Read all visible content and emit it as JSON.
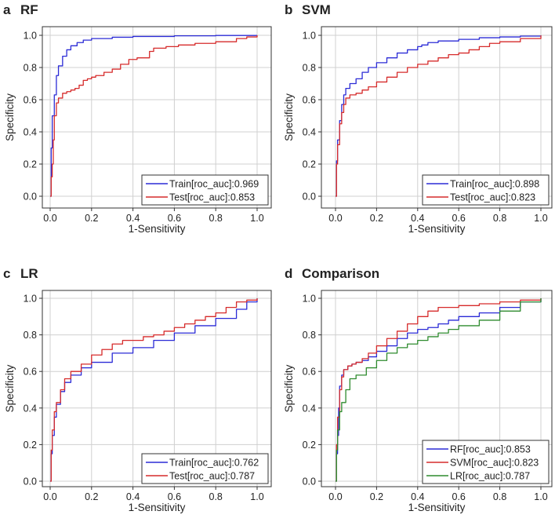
{
  "figure": {
    "panels": [
      {
        "letter": "a",
        "title": "RF"
      },
      {
        "letter": "b",
        "title": "SVM"
      },
      {
        "letter": "c",
        "title": "LR"
      },
      {
        "letter": "d",
        "title": "Comparison"
      }
    ]
  },
  "chart_data": [
    {
      "type": "line",
      "title": "RF",
      "xlabel": "1-Sensitivity",
      "ylabel": "Specificity",
      "xlim": [
        0,
        1
      ],
      "ylim": [
        0,
        1
      ],
      "xticks": [
        "0.0",
        "0.2",
        "0.4",
        "0.6",
        "0.8",
        "1.0"
      ],
      "yticks": [
        "0.0",
        "0.2",
        "0.4",
        "0.6",
        "0.8",
        "1.0"
      ],
      "grid": true,
      "legend_position": "bottom-right",
      "series": [
        {
          "name": "Train[roc_auc]:0.969",
          "color": "#2b2bd6",
          "x": [
            0,
            0.005,
            0.01,
            0.02,
            0.03,
            0.04,
            0.06,
            0.08,
            0.1,
            0.13,
            0.16,
            0.2,
            0.3,
            0.4,
            0.6,
            0.8,
            1.0
          ],
          "y": [
            0,
            0.3,
            0.5,
            0.63,
            0.75,
            0.81,
            0.87,
            0.91,
            0.935,
            0.955,
            0.97,
            0.98,
            0.988,
            0.993,
            0.997,
            0.999,
            1.0
          ]
        },
        {
          "name": "Test[roc_auc]:0.853",
          "color": "#d62b2b",
          "x": [
            0,
            0.005,
            0.01,
            0.015,
            0.02,
            0.03,
            0.04,
            0.06,
            0.08,
            0.1,
            0.12,
            0.14,
            0.16,
            0.18,
            0.2,
            0.22,
            0.26,
            0.3,
            0.34,
            0.38,
            0.42,
            0.48,
            0.5,
            0.56,
            0.62,
            0.7,
            0.8,
            0.9,
            0.95,
            1.0
          ],
          "y": [
            0,
            0.12,
            0.2,
            0.35,
            0.5,
            0.58,
            0.61,
            0.64,
            0.65,
            0.66,
            0.67,
            0.69,
            0.72,
            0.73,
            0.74,
            0.75,
            0.77,
            0.79,
            0.82,
            0.85,
            0.86,
            0.9,
            0.92,
            0.93,
            0.94,
            0.95,
            0.96,
            0.98,
            0.99,
            1.0
          ]
        }
      ]
    },
    {
      "type": "line",
      "title": "SVM",
      "xlabel": "1-Sensitivity",
      "ylabel": "Specificity",
      "xlim": [
        0,
        1
      ],
      "ylim": [
        0,
        1
      ],
      "xticks": [
        "0.0",
        "0.2",
        "0.4",
        "0.6",
        "0.8",
        "1.0"
      ],
      "yticks": [
        "0.0",
        "0.2",
        "0.4",
        "0.6",
        "0.8",
        "1.0"
      ],
      "grid": true,
      "legend_position": "bottom-right",
      "series": [
        {
          "name": "Train[roc_auc]:0.898",
          "color": "#2b2bd6",
          "x": [
            0,
            0.005,
            0.01,
            0.02,
            0.03,
            0.04,
            0.05,
            0.07,
            0.1,
            0.13,
            0.16,
            0.2,
            0.25,
            0.3,
            0.35,
            0.4,
            0.42,
            0.45,
            0.5,
            0.6,
            0.7,
            0.8,
            0.9,
            1.0
          ],
          "y": [
            0,
            0.22,
            0.35,
            0.47,
            0.57,
            0.63,
            0.67,
            0.7,
            0.73,
            0.77,
            0.8,
            0.83,
            0.86,
            0.89,
            0.91,
            0.93,
            0.94,
            0.955,
            0.965,
            0.975,
            0.985,
            0.99,
            0.995,
            1.0
          ]
        },
        {
          "name": "Test[roc_auc]:0.823",
          "color": "#d62b2b",
          "x": [
            0,
            0.005,
            0.01,
            0.02,
            0.03,
            0.04,
            0.05,
            0.07,
            0.1,
            0.13,
            0.16,
            0.2,
            0.25,
            0.3,
            0.35,
            0.4,
            0.45,
            0.5,
            0.55,
            0.6,
            0.65,
            0.7,
            0.75,
            0.8,
            0.9,
            1.0
          ],
          "y": [
            0,
            0.2,
            0.32,
            0.45,
            0.52,
            0.57,
            0.61,
            0.63,
            0.64,
            0.66,
            0.68,
            0.71,
            0.74,
            0.77,
            0.8,
            0.82,
            0.84,
            0.86,
            0.88,
            0.89,
            0.91,
            0.93,
            0.95,
            0.96,
            0.98,
            1.0
          ]
        }
      ]
    },
    {
      "type": "line",
      "title": "LR",
      "xlabel": "1-Sensitivity",
      "ylabel": "Specificity",
      "xlim": [
        0,
        1
      ],
      "ylim": [
        0,
        1
      ],
      "xticks": [
        "0.0",
        "0.2",
        "0.4",
        "0.6",
        "0.8",
        "1.0"
      ],
      "yticks": [
        "0.0",
        "0.2",
        "0.4",
        "0.6",
        "0.8",
        "1.0"
      ],
      "grid": true,
      "legend_position": "bottom-right",
      "series": [
        {
          "name": "Train[roc_auc]:0.762",
          "color": "#2b2bd6",
          "x": [
            0,
            0.005,
            0.01,
            0.02,
            0.03,
            0.05,
            0.07,
            0.1,
            0.15,
            0.2,
            0.3,
            0.4,
            0.5,
            0.6,
            0.7,
            0.8,
            0.9,
            0.95,
            1.0
          ],
          "y": [
            0,
            0.15,
            0.25,
            0.35,
            0.42,
            0.49,
            0.54,
            0.58,
            0.62,
            0.65,
            0.7,
            0.73,
            0.77,
            0.81,
            0.85,
            0.89,
            0.94,
            0.98,
            1.0
          ]
        },
        {
          "name": "Test[roc_auc]:0.787",
          "color": "#d62b2b",
          "x": [
            0,
            0.005,
            0.01,
            0.02,
            0.03,
            0.05,
            0.07,
            0.1,
            0.15,
            0.2,
            0.25,
            0.3,
            0.35,
            0.4,
            0.45,
            0.5,
            0.55,
            0.6,
            0.65,
            0.7,
            0.75,
            0.8,
            0.85,
            0.9,
            0.95,
            1.0
          ],
          "y": [
            0,
            0.17,
            0.28,
            0.38,
            0.43,
            0.5,
            0.56,
            0.6,
            0.64,
            0.69,
            0.72,
            0.75,
            0.77,
            0.77,
            0.79,
            0.8,
            0.82,
            0.84,
            0.86,
            0.88,
            0.9,
            0.92,
            0.95,
            0.98,
            0.99,
            1.0
          ]
        }
      ]
    },
    {
      "type": "line",
      "title": "Comparison",
      "xlabel": "1-Sensitivity",
      "ylabel": "Specificity",
      "xlim": [
        0,
        1
      ],
      "ylim": [
        0,
        1
      ],
      "xticks": [
        "0.0",
        "0.2",
        "0.4",
        "0.6",
        "0.8",
        "1.0"
      ],
      "yticks": [
        "0.0",
        "0.2",
        "0.4",
        "0.6",
        "0.8",
        "1.0"
      ],
      "grid": true,
      "legend_position": "bottom-right",
      "series": [
        {
          "name": "RF[roc_auc]:0.853",
          "color": "#2b2bd6",
          "x": [
            0,
            0.005,
            0.01,
            0.015,
            0.02,
            0.03,
            0.04,
            0.06,
            0.08,
            0.1,
            0.13,
            0.16,
            0.2,
            0.25,
            0.3,
            0.35,
            0.4,
            0.45,
            0.5,
            0.55,
            0.6,
            0.7,
            0.8,
            0.9,
            1.0
          ],
          "y": [
            0,
            0.15,
            0.25,
            0.4,
            0.52,
            0.58,
            0.61,
            0.63,
            0.64,
            0.65,
            0.66,
            0.68,
            0.71,
            0.74,
            0.78,
            0.81,
            0.83,
            0.84,
            0.86,
            0.88,
            0.9,
            0.92,
            0.95,
            0.98,
            1.0
          ]
        },
        {
          "name": "SVM[roc_auc]:0.823",
          "color": "#d62b2b",
          "x": [
            0,
            0.005,
            0.01,
            0.02,
            0.03,
            0.04,
            0.06,
            0.08,
            0.1,
            0.13,
            0.16,
            0.2,
            0.25,
            0.3,
            0.35,
            0.4,
            0.45,
            0.5,
            0.6,
            0.7,
            0.8,
            0.9,
            1.0
          ],
          "y": [
            0,
            0.2,
            0.35,
            0.5,
            0.57,
            0.61,
            0.63,
            0.64,
            0.65,
            0.67,
            0.7,
            0.74,
            0.78,
            0.82,
            0.86,
            0.9,
            0.93,
            0.95,
            0.96,
            0.97,
            0.98,
            0.99,
            1.0
          ]
        },
        {
          "name": "LR[roc_auc]:0.787",
          "color": "#2e8b2e",
          "x": [
            0,
            0.005,
            0.01,
            0.02,
            0.03,
            0.05,
            0.07,
            0.1,
            0.15,
            0.2,
            0.25,
            0.3,
            0.35,
            0.4,
            0.45,
            0.5,
            0.55,
            0.6,
            0.7,
            0.8,
            0.9,
            1.0
          ],
          "y": [
            0,
            0.17,
            0.28,
            0.38,
            0.43,
            0.5,
            0.56,
            0.58,
            0.62,
            0.66,
            0.7,
            0.73,
            0.75,
            0.77,
            0.79,
            0.81,
            0.83,
            0.85,
            0.88,
            0.93,
            0.98,
            1.0
          ]
        }
      ]
    }
  ]
}
